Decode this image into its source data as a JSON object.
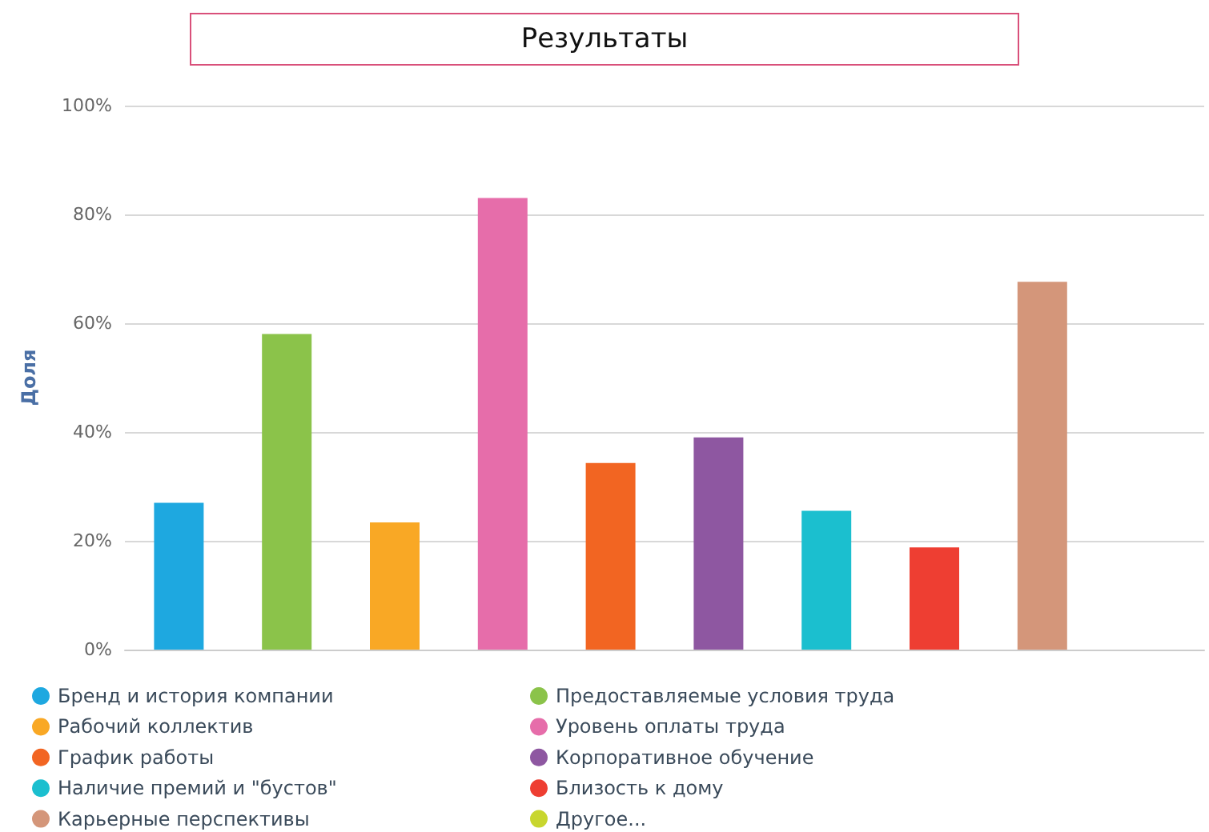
{
  "chart_data": {
    "type": "bar",
    "title": "Результаты",
    "ylabel": "Доля",
    "categories": [
      null,
      null,
      null,
      null,
      null,
      null,
      null,
      null,
      null,
      null
    ],
    "series": [
      {
        "name": "Бренд и история компании",
        "color": "#1ea8e0",
        "values": [
          27,
          null,
          null,
          null,
          null,
          null,
          null,
          null,
          null,
          null
        ]
      },
      {
        "name": "Предоставляемые условия труда",
        "color": "#8bc34a",
        "values": [
          null,
          58,
          null,
          null,
          null,
          null,
          null,
          null,
          null,
          null
        ]
      },
      {
        "name": "Рабочий коллектив",
        "color": "#f9a825",
        "values": [
          null,
          null,
          23.4,
          null,
          null,
          null,
          null,
          null,
          null,
          null
        ]
      },
      {
        "name": "Уровень оплаты труда",
        "color": "#e66daa",
        "values": [
          null,
          null,
          null,
          83,
          null,
          null,
          null,
          null,
          null,
          null
        ]
      },
      {
        "name": "График работы",
        "color": "#f26522",
        "values": [
          null,
          null,
          null,
          null,
          34.3,
          null,
          null,
          null,
          null,
          null
        ]
      },
      {
        "name": "Корпоративное обучение",
        "color": "#8e57a1",
        "values": [
          null,
          null,
          null,
          null,
          null,
          39,
          null,
          null,
          null,
          null
        ]
      },
      {
        "name": "Наличие премий и \"бустов\"",
        "color": "#1bbfcf",
        "values": [
          null,
          null,
          null,
          null,
          null,
          null,
          25.5,
          null,
          null,
          null
        ]
      },
      {
        "name": "Близость к дому",
        "color": "#ee3e32",
        "values": [
          null,
          null,
          null,
          null,
          null,
          null,
          null,
          18.8,
          null,
          null
        ]
      },
      {
        "name": "Карьерные перспективы",
        "color": "#d4967a",
        "values": [
          null,
          null,
          null,
          null,
          null,
          null,
          null,
          null,
          67.6,
          null
        ]
      },
      {
        "name": "Другое...",
        "color": "#c8d62e",
        "values": [
          null,
          null,
          null,
          null,
          null,
          null,
          null,
          null,
          null,
          null
        ]
      }
    ],
    "ylim": [
      0,
      100
    ],
    "yticks": [
      {
        "value": 0,
        "label": "0%"
      },
      {
        "value": 20,
        "label": "20%"
      },
      {
        "value": 40,
        "label": "40%"
      },
      {
        "value": 60,
        "label": "60%"
      },
      {
        "value": 80,
        "label": "80%"
      },
      {
        "value": 100,
        "label": "100%"
      }
    ],
    "grid": "y",
    "legend": "bottom"
  }
}
